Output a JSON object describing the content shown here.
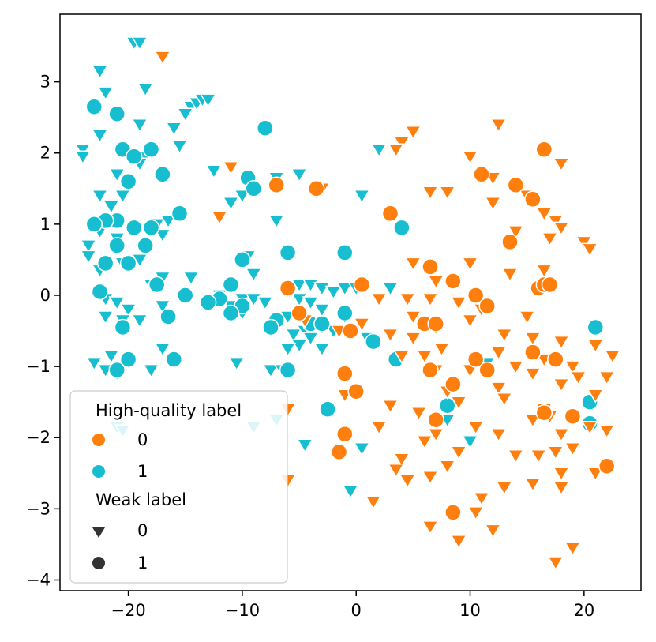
{
  "chart_data": {
    "type": "scatter",
    "title": "",
    "xlabel": "",
    "ylabel": "",
    "xlim": [
      -26,
      25
    ],
    "ylim": [
      -4.15,
      3.95
    ],
    "xticks": [
      -20,
      -10,
      0,
      10,
      20
    ],
    "yticks": [
      -4,
      -3,
      -2,
      -1,
      0,
      1,
      2,
      3
    ],
    "xtick_labels": [
      "−20",
      "−10",
      "0",
      "10",
      "20"
    ],
    "ytick_labels": [
      "−4",
      "−3",
      "−2",
      "−1",
      "0",
      "1",
      "2",
      "3"
    ],
    "grid": false,
    "hue_colors": {
      "0": "#ff7f0e",
      "1": "#17becf"
    },
    "legend": {
      "placement": "lower-left",
      "hue_title": "High-quality label",
      "hue_entries": [
        "0",
        "1"
      ],
      "style_title": "Weak label",
      "style_entries": [
        {
          "label": "0",
          "marker": "triangle-down"
        },
        {
          "label": "1",
          "marker": "circle"
        }
      ]
    },
    "series": [
      {
        "name": "hq=1, weak=0",
        "hue": "1",
        "marker": "triangle-down",
        "points": [
          [
            -19.5,
            3.55
          ],
          [
            -19,
            3.55
          ],
          [
            -22.5,
            3.15
          ],
          [
            -18.5,
            2.9
          ],
          [
            -22,
            2.85
          ],
          [
            -23,
            2.65
          ],
          [
            -14.5,
            2.65
          ],
          [
            -14,
            2.7
          ],
          [
            -13.5,
            2.75
          ],
          [
            -13,
            2.75
          ],
          [
            -15,
            2.55
          ],
          [
            -16,
            2.35
          ],
          [
            -19,
            2.4
          ],
          [
            -22.5,
            2.25
          ],
          [
            -15.5,
            2.1
          ],
          [
            -24,
            2.05
          ],
          [
            -24,
            1.95
          ],
          [
            -18.5,
            1.95
          ],
          [
            -12.5,
            1.75
          ],
          [
            -5,
            1.7
          ],
          [
            -7,
            1.65
          ],
          [
            -7,
            1.55
          ],
          [
            -21,
            1.7
          ],
          [
            -19,
            1.85
          ],
          [
            -3.5,
            1.45
          ],
          [
            -10,
            1.4
          ],
          [
            -22.5,
            1.4
          ],
          [
            -20.5,
            1.4
          ],
          [
            0.5,
            1.4
          ],
          [
            -11,
            1.3
          ],
          [
            -21.5,
            1.25
          ],
          [
            2,
            2.05
          ],
          [
            -7,
            1.05
          ],
          [
            -17.5,
            1.0
          ],
          [
            -16.5,
            1.05
          ],
          [
            -17,
            0.85
          ],
          [
            -22.5,
            0.9
          ],
          [
            -21,
            0.8
          ],
          [
            -23.5,
            0.7
          ],
          [
            -23.5,
            0.55
          ],
          [
            -19,
            0.5
          ],
          [
            -9.5,
            0.55
          ],
          [
            -20.5,
            0.45
          ],
          [
            -22.5,
            0.35
          ],
          [
            -17,
            0.25
          ],
          [
            -14.5,
            0.25
          ],
          [
            -18,
            0.15
          ],
          [
            -9,
            0.3
          ],
          [
            -5,
            0.15
          ],
          [
            -4,
            0.15
          ],
          [
            -3,
            0.1
          ],
          [
            -2,
            0.05
          ],
          [
            -1,
            0.1
          ],
          [
            0,
            0.1
          ],
          [
            3,
            0.1
          ],
          [
            -12,
            0
          ],
          [
            -10,
            -0.05
          ],
          [
            -9,
            -0.05
          ],
          [
            -8,
            -0.1
          ],
          [
            -22,
            -0.05
          ],
          [
            -21,
            -0.1
          ],
          [
            -20,
            -0.2
          ],
          [
            -17,
            -0.15
          ],
          [
            -13,
            -0.1
          ],
          [
            -5,
            -0.05
          ],
          [
            -4,
            -0.1
          ],
          [
            -3,
            -0.2
          ],
          [
            -1,
            -0.3
          ],
          [
            -11,
            -0.15
          ],
          [
            -10,
            -0.25
          ],
          [
            -22,
            -0.3
          ],
          [
            -20.5,
            -0.35
          ],
          [
            -19,
            -0.35
          ],
          [
            -6,
            -0.3
          ],
          [
            -5.5,
            -0.55
          ],
          [
            -4.5,
            -0.5
          ],
          [
            -3,
            -0.45
          ],
          [
            -2,
            -0.5
          ],
          [
            -4,
            -0.6
          ],
          [
            -5,
            -0.7
          ],
          [
            -6,
            -0.75
          ],
          [
            -3,
            -0.75
          ],
          [
            1,
            -0.6
          ],
          [
            -17,
            -0.75
          ],
          [
            -21.5,
            -0.85
          ],
          [
            -20,
            -0.9
          ],
          [
            -23,
            -0.95
          ],
          [
            -18,
            -1.05
          ],
          [
            -22,
            -1.05
          ],
          [
            -10.5,
            -0.95
          ],
          [
            -7.5,
            -1.05
          ],
          [
            -6.5,
            -1.05
          ],
          [
            -21,
            -1.1
          ],
          [
            11.5,
            -0.95
          ],
          [
            -21,
            -1.85
          ],
          [
            -20.5,
            -1.9
          ],
          [
            -9,
            -1.85
          ],
          [
            -7,
            -1.75
          ],
          [
            -4.5,
            -2.1
          ],
          [
            0.5,
            -2.15
          ],
          [
            -0.5,
            -2.75
          ],
          [
            10,
            -2.05
          ],
          [
            8,
            -1.75
          ]
        ]
      },
      {
        "name": "hq=1, weak=1",
        "hue": "1",
        "marker": "circle",
        "points": [
          [
            -23,
            2.65
          ],
          [
            -21,
            2.55
          ],
          [
            -8,
            2.35
          ],
          [
            -20.5,
            2.05
          ],
          [
            -18,
            2.05
          ],
          [
            -19.5,
            1.95
          ],
          [
            -20,
            1.6
          ],
          [
            -17,
            1.7
          ],
          [
            -9.5,
            1.65
          ],
          [
            -9,
            1.5
          ],
          [
            -15.5,
            1.15
          ],
          [
            -21,
            1.05
          ],
          [
            -22,
            1.05
          ],
          [
            -23,
            1.0
          ],
          [
            -19.5,
            0.95
          ],
          [
            -18,
            0.95
          ],
          [
            4,
            0.95
          ],
          [
            -21,
            0.7
          ],
          [
            -18.5,
            0.7
          ],
          [
            -6,
            0.6
          ],
          [
            -1,
            0.6
          ],
          [
            -22,
            0.45
          ],
          [
            -20,
            0.45
          ],
          [
            -10,
            0.5
          ],
          [
            -17.5,
            0.15
          ],
          [
            -11,
            0.15
          ],
          [
            -15,
            0
          ],
          [
            -12,
            -0.05
          ],
          [
            -22.5,
            0.05
          ],
          [
            -13,
            -0.1
          ],
          [
            -10,
            -0.15
          ],
          [
            -11,
            -0.25
          ],
          [
            -7,
            -0.35
          ],
          [
            -7.5,
            -0.45
          ],
          [
            -16.5,
            -0.3
          ],
          [
            -4,
            -0.4
          ],
          [
            -3,
            -0.4
          ],
          [
            -1,
            -0.25
          ],
          [
            -20.5,
            -0.45
          ],
          [
            1.5,
            -0.65
          ],
          [
            -20,
            -0.9
          ],
          [
            -16,
            -0.9
          ],
          [
            3.5,
            -0.9
          ],
          [
            -21,
            -1.05
          ],
          [
            -6,
            -1.05
          ],
          [
            -2.5,
            -1.6
          ],
          [
            8,
            -1.55
          ],
          [
            21,
            -0.45
          ],
          [
            20.5,
            -1.5
          ],
          [
            20.5,
            -1.8
          ]
        ]
      },
      {
        "name": "hq=0, weak=0",
        "hue": "0",
        "marker": "triangle-down",
        "points": [
          [
            -17,
            3.35
          ],
          [
            12.5,
            2.4
          ],
          [
            5,
            2.3
          ],
          [
            4,
            2.15
          ],
          [
            3.5,
            2.05
          ],
          [
            10,
            1.95
          ],
          [
            18,
            1.85
          ],
          [
            -11,
            1.8
          ],
          [
            11,
            1.7
          ],
          [
            12,
            1.65
          ],
          [
            6.5,
            1.45
          ],
          [
            8,
            1.45
          ],
          [
            15,
            1.4
          ],
          [
            -3,
            1.5
          ],
          [
            12,
            1.3
          ],
          [
            -12,
            1.1
          ],
          [
            16.5,
            1.15
          ],
          [
            17.5,
            1.05
          ],
          [
            18,
            0.95
          ],
          [
            14,
            0.9
          ],
          [
            17,
            0.8
          ],
          [
            20,
            0.75
          ],
          [
            20.5,
            0.65
          ],
          [
            5,
            0.45
          ],
          [
            10,
            0.45
          ],
          [
            16.5,
            0.35
          ],
          [
            7,
            0.2
          ],
          [
            13.5,
            0.3
          ],
          [
            2,
            -0.05
          ],
          [
            4.5,
            -0.05
          ],
          [
            6.5,
            -0.05
          ],
          [
            9,
            -0.1
          ],
          [
            11,
            -0.2
          ],
          [
            15,
            -0.3
          ],
          [
            -4.5,
            -0.35
          ],
          [
            0.5,
            -0.4
          ],
          [
            5,
            -0.3
          ],
          [
            10,
            -0.35
          ],
          [
            7,
            -0.45
          ],
          [
            -1.5,
            -0.5
          ],
          [
            3,
            -0.55
          ],
          [
            13,
            -0.55
          ],
          [
            5,
            -0.6
          ],
          [
            15.5,
            -0.6
          ],
          [
            18,
            -0.65
          ],
          [
            21,
            -0.7
          ],
          [
            7.5,
            -0.75
          ],
          [
            4,
            -0.85
          ],
          [
            6,
            -0.85
          ],
          [
            12.5,
            -0.8
          ],
          [
            16.5,
            -0.9
          ],
          [
            19,
            -1.0
          ],
          [
            22.5,
            -0.85
          ],
          [
            7,
            -1.05
          ],
          [
            10,
            -1.05
          ],
          [
            14,
            -1.0
          ],
          [
            15.5,
            -1.1
          ],
          [
            18,
            -1.25
          ],
          [
            19.5,
            -1.15
          ],
          [
            22,
            -1.15
          ],
          [
            -1,
            -1.4
          ],
          [
            8,
            -1.35
          ],
          [
            12.5,
            -1.3
          ],
          [
            3,
            -1.55
          ],
          [
            5.5,
            -1.65
          ],
          [
            9,
            -1.5
          ],
          [
            13,
            -1.45
          ],
          [
            16.5,
            -1.6
          ],
          [
            21,
            -1.4
          ],
          [
            -6,
            -1.6
          ],
          [
            2,
            -1.85
          ],
          [
            7,
            -1.95
          ],
          [
            10.5,
            -1.85
          ],
          [
            12.5,
            -1.95
          ],
          [
            15.5,
            -1.75
          ],
          [
            17,
            -1.7
          ],
          [
            18,
            -1.95
          ],
          [
            20.5,
            -1.85
          ],
          [
            22,
            -1.9
          ],
          [
            6,
            -2.05
          ],
          [
            4,
            -2.3
          ],
          [
            9,
            -2.2
          ],
          [
            14,
            -2.25
          ],
          [
            17.5,
            -2.2
          ],
          [
            19,
            -2.15
          ],
          [
            3.5,
            -2.45
          ],
          [
            6.5,
            -2.55
          ],
          [
            8,
            -2.4
          ],
          [
            16,
            -2.25
          ],
          [
            18,
            -2.5
          ],
          [
            21,
            -2.5
          ],
          [
            -6,
            -2.6
          ],
          [
            4.5,
            -2.6
          ],
          [
            11,
            -2.85
          ],
          [
            13,
            -2.7
          ],
          [
            15.5,
            -2.65
          ],
          [
            18,
            -2.7
          ],
          [
            1.5,
            -2.9
          ],
          [
            10.5,
            -3.05
          ],
          [
            6.5,
            -3.25
          ],
          [
            12,
            -3.3
          ],
          [
            9,
            -3.45
          ],
          [
            19,
            -3.55
          ],
          [
            17.5,
            -3.75
          ]
        ]
      },
      {
        "name": "hq=0, weak=1",
        "hue": "0",
        "marker": "circle",
        "points": [
          [
            16.5,
            2.05
          ],
          [
            11,
            1.7
          ],
          [
            14,
            1.55
          ],
          [
            15.5,
            1.35
          ],
          [
            -7,
            1.55
          ],
          [
            -3.5,
            1.5
          ],
          [
            3,
            1.15
          ],
          [
            13.5,
            0.75
          ],
          [
            6.5,
            0.4
          ],
          [
            8.5,
            0.2
          ],
          [
            16,
            0.1
          ],
          [
            16.5,
            0.15
          ],
          [
            17,
            0.15
          ],
          [
            0.5,
            0.15
          ],
          [
            -6,
            0.1
          ],
          [
            10.5,
            0
          ],
          [
            11.5,
            -0.15
          ],
          [
            -5,
            -0.25
          ],
          [
            6,
            -0.4
          ],
          [
            7,
            -0.4
          ],
          [
            -0.5,
            -0.5
          ],
          [
            15.5,
            -0.8
          ],
          [
            10.5,
            -0.9
          ],
          [
            6.5,
            -1.05
          ],
          [
            -1,
            -1.1
          ],
          [
            11.5,
            -1.05
          ],
          [
            17.5,
            -0.9
          ],
          [
            8.5,
            -1.25
          ],
          [
            0,
            -1.35
          ],
          [
            7,
            -1.75
          ],
          [
            16.5,
            -1.65
          ],
          [
            19,
            -1.7
          ],
          [
            -1,
            -1.95
          ],
          [
            -1.5,
            -2.2
          ],
          [
            22,
            -2.4
          ],
          [
            8.5,
            -3.05
          ]
        ]
      }
    ]
  }
}
